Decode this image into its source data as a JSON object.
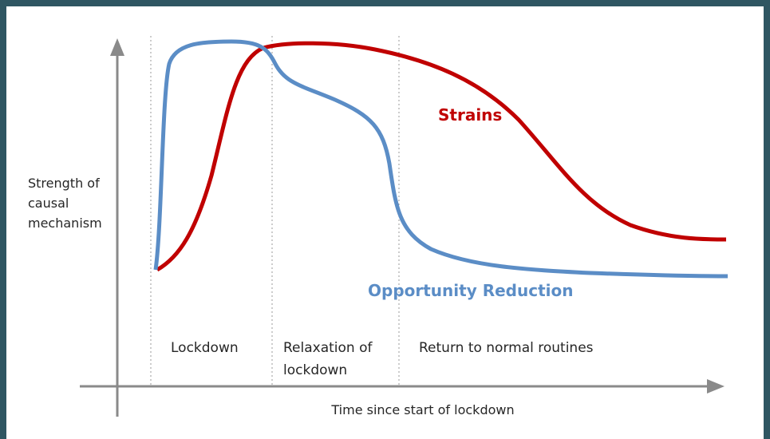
{
  "y_axis_label": [
    "Strength of",
    "causal",
    "mechanism"
  ],
  "x_axis_label": "Time since start of lockdown",
  "phases": [
    [
      "Lockdown"
    ],
    [
      "Relaxation of",
      "lockdown"
    ],
    [
      "Return to normal routines"
    ]
  ],
  "curve_labels": {
    "strains": "Strains",
    "opportunity_reduction": "Opportunity Reduction"
  }
}
